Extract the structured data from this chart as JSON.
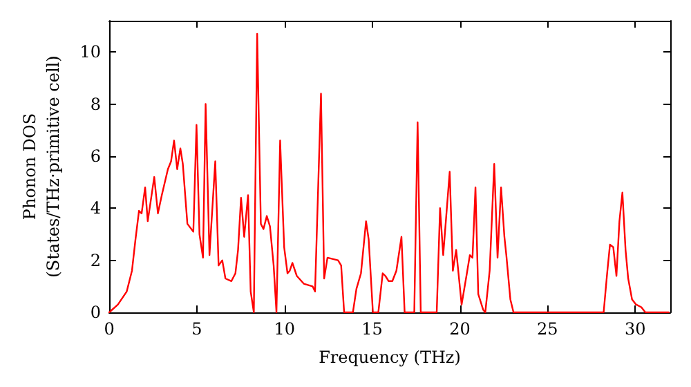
{
  "chart_data": {
    "type": "line",
    "xlabel": "Frequency (THz)",
    "ylabel": "Phonon DOS\n(States/THz·primitive cell)",
    "x": [
      0,
      0.5,
      1.0,
      1.3,
      1.5,
      1.7,
      1.85,
      2.05,
      2.2,
      2.57,
      2.78,
      3.0,
      3.35,
      3.53,
      3.7,
      3.88,
      4.06,
      4.2,
      4.46,
      4.8,
      4.98,
      5.15,
      5.35,
      5.5,
      5.72,
      6.05,
      6.24,
      6.45,
      6.63,
      6.97,
      7.2,
      7.35,
      7.52,
      7.7,
      7.92,
      8.07,
      8.25,
      8.44,
      8.65,
      8.8,
      8.99,
      9.17,
      9.38,
      9.54,
      9.75,
      9.98,
      10.17,
      10.3,
      10.45,
      10.7,
      11.1,
      11.6,
      11.74,
      12.08,
      12.26,
      12.45,
      13.05,
      13.23,
      13.4,
      13.9,
      14.1,
      14.36,
      14.65,
      14.8,
      15.04,
      15.35,
      15.6,
      15.75,
      15.94,
      16.15,
      16.38,
      16.67,
      16.85,
      17.4,
      17.59,
      17.77,
      18.68,
      18.87,
      19.05,
      19.42,
      19.6,
      19.79,
      20.1,
      20.4,
      20.57,
      20.72,
      20.89,
      21.05,
      21.33,
      21.45,
      21.7,
      21.96,
      22.15,
      22.35,
      22.54,
      22.65,
      22.88,
      23.06,
      28.2,
      28.4,
      28.56,
      28.75,
      28.93,
      29.1,
      29.27,
      29.45,
      29.6,
      29.82,
      30.05,
      30.35,
      30.58,
      31.92
    ],
    "series": [
      {
        "color": "#ff0000",
        "values": [
          0,
          0.3,
          0.8,
          1.6,
          2.8,
          3.9,
          3.8,
          4.8,
          3.5,
          5.2,
          3.8,
          4.5,
          5.5,
          5.8,
          6.6,
          5.5,
          6.3,
          5.7,
          3.4,
          3.1,
          7.2,
          3.0,
          2.1,
          8.0,
          2.2,
          5.8,
          1.8,
          2.0,
          1.3,
          1.2,
          1.5,
          2.4,
          4.4,
          2.9,
          4.5,
          0.8,
          0,
          10.7,
          3.4,
          3.2,
          3.7,
          3.3,
          1.8,
          0,
          6.6,
          2.5,
          1.5,
          1.6,
          1.9,
          1.4,
          1.1,
          1.0,
          0.8,
          8.4,
          1.3,
          2.1,
          2.0,
          1.8,
          0,
          0,
          0.9,
          1.5,
          3.5,
          2.8,
          0,
          0,
          1.5,
          1.4,
          1.2,
          1.2,
          1.6,
          2.9,
          0,
          0,
          7.3,
          0,
          0,
          4.0,
          2.2,
          5.4,
          1.6,
          2.4,
          0.3,
          1.5,
          2.2,
          2.1,
          4.8,
          0.7,
          0.1,
          0,
          1.6,
          5.7,
          2.1,
          4.8,
          2.9,
          2.2,
          0.5,
          0,
          0,
          1.5,
          2.6,
          2.5,
          1.4,
          3.5,
          4.6,
          2.4,
          1.3,
          0.5,
          0.3,
          0.2,
          0,
          0
        ]
      }
    ],
    "xlim": [
      0,
      32
    ],
    "xticks": [
      0,
      5,
      10,
      15,
      20,
      25,
      30
    ],
    "ylim": [
      0,
      11.2
    ],
    "yticks": [
      0,
      2,
      4,
      6,
      8,
      10
    ],
    "grid": false,
    "marker": "none",
    "line_style": "solid"
  }
}
